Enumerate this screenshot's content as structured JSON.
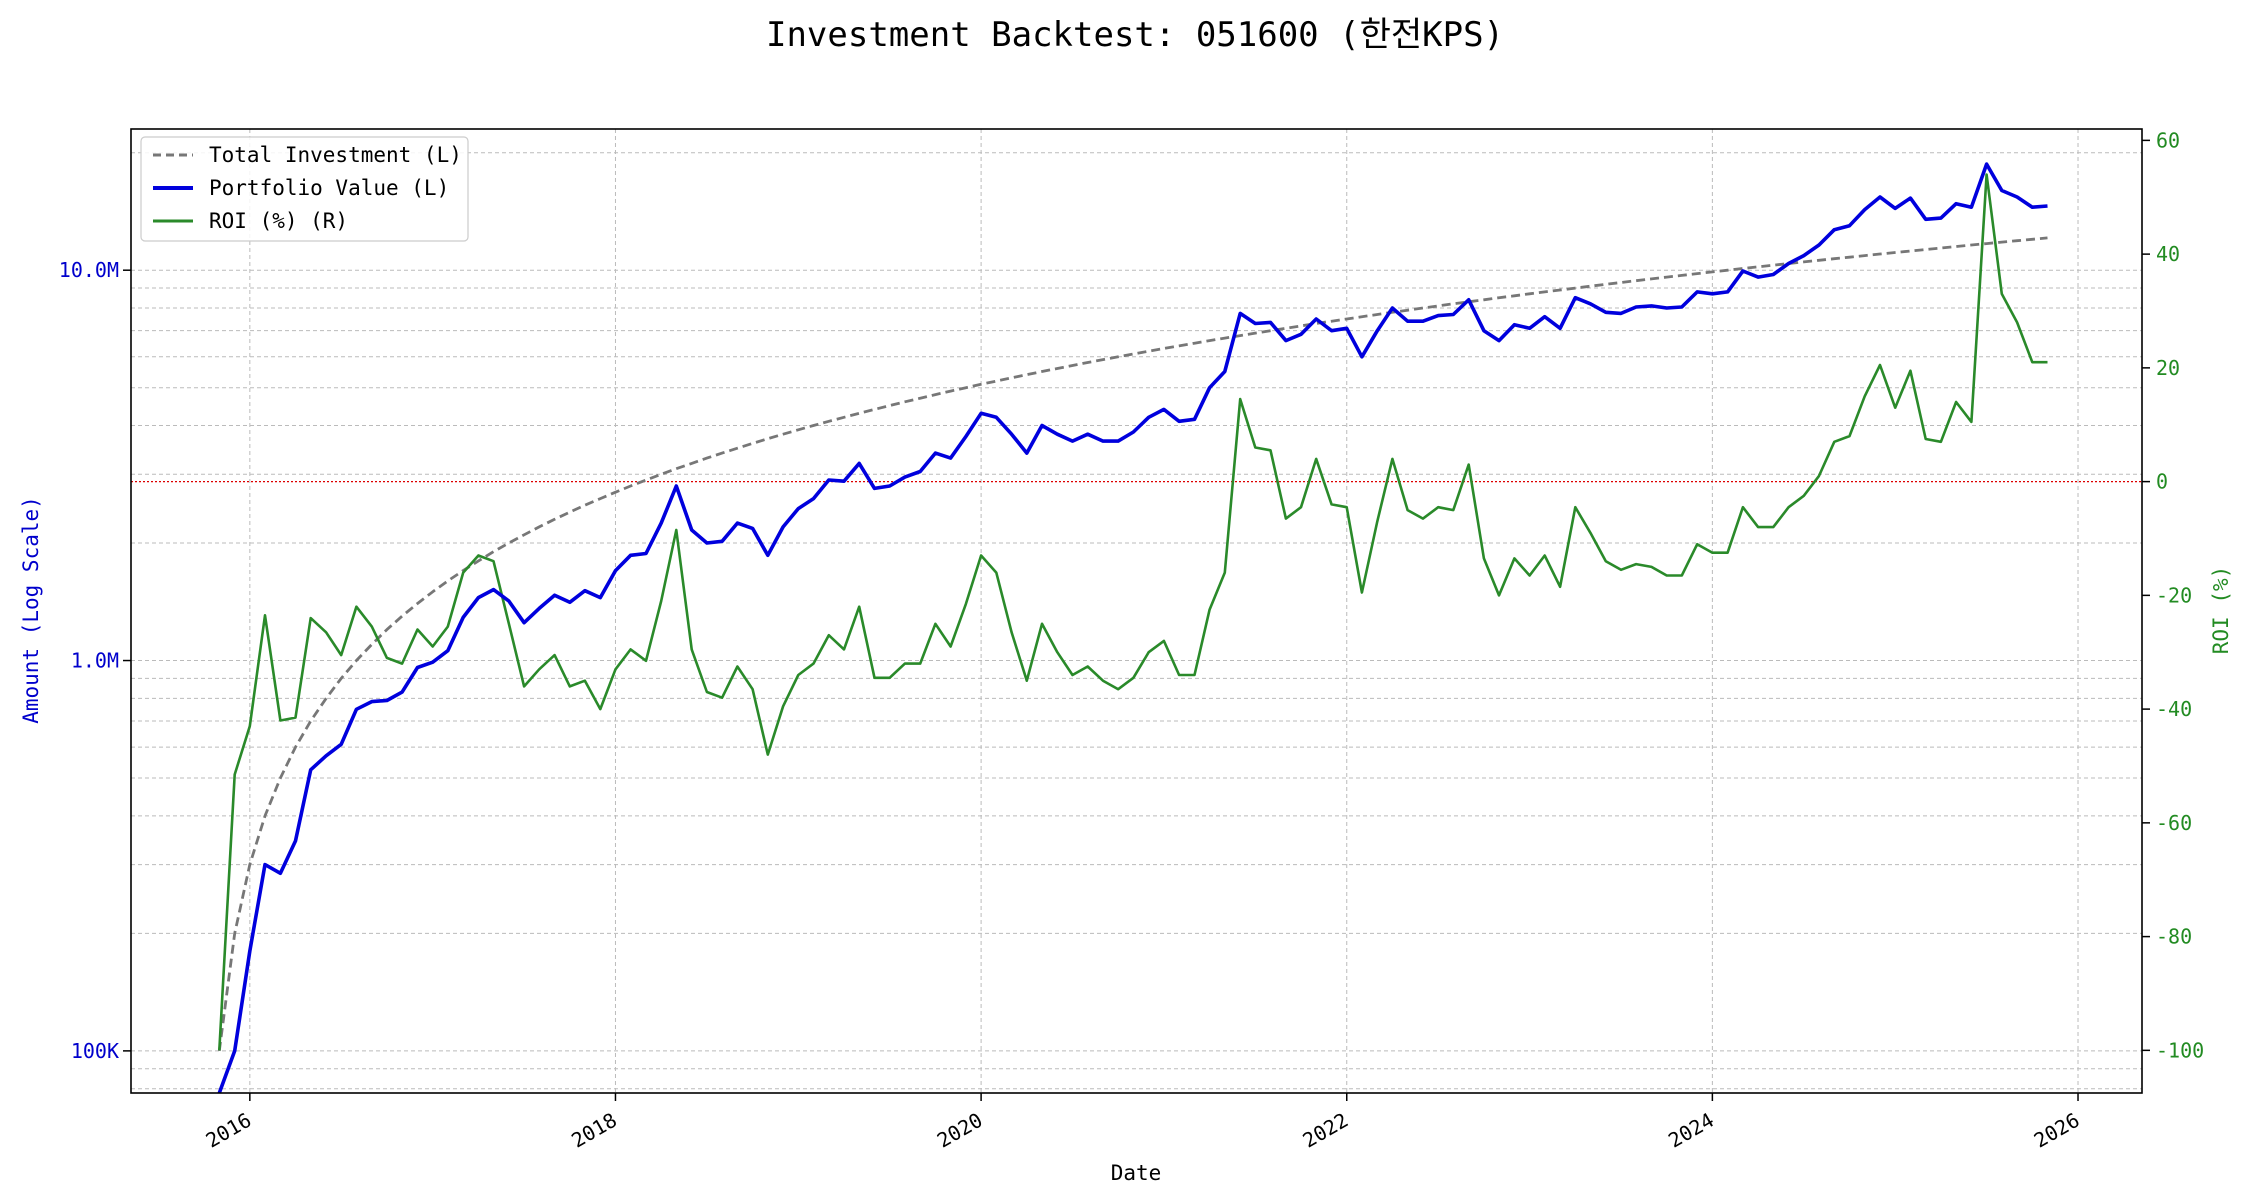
{
  "colors": {
    "investment": "#777777",
    "portfolio": "#0000dd",
    "roi": "#2a8a2a",
    "zero_line": "#dd0000",
    "grid": "#bbbbbb"
  },
  "chart_data": {
    "type": "line",
    "title": "Investment Backtest: 051600 (한전KPS)",
    "xlabel": "Date",
    "ylabel_left": "Amount (Log Scale)",
    "ylabel_right": "ROI (%)",
    "x_ticks": [
      "2016",
      "2018",
      "2020",
      "2022",
      "2024",
      "2026"
    ],
    "x_range": [
      2015.35,
      2026.35
    ],
    "y_left_scale": "log",
    "y_left_range": [
      78000,
      23000000
    ],
    "y_left_ticks": [
      {
        "value": 100000,
        "label": "100K"
      },
      {
        "value": 1000000,
        "label": "1.0M"
      },
      {
        "value": 10000000,
        "label": "10.0M"
      }
    ],
    "y_right_range": [
      -107.5,
      62
    ],
    "y_right_ticks": [
      -100,
      -80,
      -60,
      -40,
      -20,
      0,
      20,
      40,
      60
    ],
    "grid": true,
    "legend_position": "top-left",
    "legend": [
      "Total Investment (L)",
      "Portfolio Value (L)",
      "ROI (%) (R)"
    ],
    "x": [
      2015.833,
      2015.917,
      2016.0,
      2016.083,
      2016.167,
      2016.25,
      2016.333,
      2016.417,
      2016.5,
      2016.583,
      2016.667,
      2016.75,
      2016.833,
      2016.917,
      2017.0,
      2017.083,
      2017.167,
      2017.25,
      2017.333,
      2017.417,
      2017.5,
      2017.583,
      2017.667,
      2017.75,
      2017.833,
      2017.917,
      2018.0,
      2018.083,
      2018.167,
      2018.25,
      2018.333,
      2018.417,
      2018.5,
      2018.583,
      2018.667,
      2018.75,
      2018.833,
      2018.917,
      2019.0,
      2019.083,
      2019.167,
      2019.25,
      2019.333,
      2019.417,
      2019.5,
      2019.583,
      2019.667,
      2019.75,
      2019.833,
      2019.917,
      2020.0,
      2020.083,
      2020.167,
      2020.25,
      2020.333,
      2020.417,
      2020.5,
      2020.583,
      2020.667,
      2020.75,
      2020.833,
      2020.917,
      2021.0,
      2021.083,
      2021.167,
      2021.25,
      2021.333,
      2021.417,
      2021.5,
      2021.583,
      2021.667,
      2021.75,
      2021.833,
      2021.917,
      2022.0,
      2022.083,
      2022.167,
      2022.25,
      2022.333,
      2022.417,
      2022.5,
      2022.583,
      2022.667,
      2022.75,
      2022.833,
      2022.917,
      2023.0,
      2023.083,
      2023.167,
      2023.25,
      2023.333,
      2023.417,
      2023.5,
      2023.583,
      2023.667,
      2023.75,
      2023.833,
      2023.917,
      2024.0,
      2024.083,
      2024.167,
      2024.25,
      2024.333,
      2024.417,
      2024.5,
      2024.583,
      2024.667,
      2024.75,
      2024.833,
      2024.917,
      2025.0,
      2025.083,
      2025.167,
      2025.25,
      2025.333,
      2025.417,
      2025.5,
      2025.583,
      2025.667,
      2025.75,
      2025.833
    ],
    "series": [
      {
        "name": "Total Investment (L)",
        "axis": "left",
        "style": "dashed",
        "values": [
          100000,
          200000,
          300000,
          400000,
          500000,
          600000,
          700000,
          800000,
          900000,
          1000000,
          1100000,
          1200000,
          1300000,
          1400000,
          1500000,
          1600000,
          1700000,
          1800000,
          1900000,
          2000000,
          2100000,
          2200000,
          2300000,
          2400000,
          2500000,
          2600000,
          2700000,
          2800000,
          2900000,
          3000000,
          3100000,
          3200000,
          3300000,
          3400000,
          3500000,
          3600000,
          3700000,
          3800000,
          3900000,
          4000000,
          4100000,
          4200000,
          4300000,
          4400000,
          4500000,
          4600000,
          4700000,
          4800000,
          4900000,
          5000000,
          5100000,
          5200000,
          5300000,
          5400000,
          5500000,
          5600000,
          5700000,
          5800000,
          5900000,
          6000000,
          6100000,
          6200000,
          6300000,
          6400000,
          6500000,
          6600000,
          6700000,
          6800000,
          6900000,
          7000000,
          7100000,
          7200000,
          7300000,
          7400000,
          7500000,
          7600000,
          7700000,
          7800000,
          7900000,
          8000000,
          8100000,
          8200000,
          8300000,
          8400000,
          8500000,
          8600000,
          8700000,
          8800000,
          8900000,
          9000000,
          9100000,
          9200000,
          9300000,
          9400000,
          9500000,
          9600000,
          9700000,
          9800000,
          9900000,
          10000000,
          10100000,
          10200000,
          10300000,
          10400000,
          10500000,
          10600000,
          10700000,
          10800000,
          10900000,
          11000000,
          11100000,
          11200000,
          11300000,
          11400000,
          11500000,
          11600000,
          11700000,
          11800000,
          11900000,
          12000000,
          12100000
        ]
      },
      {
        "name": "Portfolio Value (L)",
        "axis": "left",
        "style": "solid",
        "values": [
          70000,
          100000,
          180000,
          300000,
          285000,
          345000,
          525000,
          570000,
          610000,
          750000,
          785000,
          790000,
          830000,
          960000,
          990000,
          1060000,
          1290000,
          1450000,
          1520000,
          1420000,
          1250000,
          1360000,
          1470000,
          1410000,
          1510000,
          1450000,
          1700000,
          1860000,
          1880000,
          2250000,
          2800000,
          2160000,
          2000000,
          2020000,
          2250000,
          2180000,
          1860000,
          2200000,
          2450000,
          2600000,
          2900000,
          2880000,
          3200000,
          2760000,
          2800000,
          2950000,
          3050000,
          3400000,
          3300000,
          3750000,
          4300000,
          4200000,
          3800000,
          3400000,
          4000000,
          3800000,
          3650000,
          3800000,
          3650000,
          3650000,
          3850000,
          4200000,
          4400000,
          4100000,
          4150000,
          5000000,
          5500000,
          7750000,
          7300000,
          7350000,
          6600000,
          6850000,
          7500000,
          7000000,
          7100000,
          6000000,
          7000000,
          8000000,
          7400000,
          7400000,
          7650000,
          7700000,
          8400000,
          7000000,
          6600000,
          7250000,
          7100000,
          7600000,
          7100000,
          8500000,
          8200000,
          7800000,
          7750000,
          8050000,
          8100000,
          8000000,
          8050000,
          8800000,
          8700000,
          8800000,
          9950000,
          9600000,
          9750000,
          10400000,
          10900000,
          11600000,
          12700000,
          13000000,
          14300000,
          15400000,
          14400000,
          15300000,
          13500000,
          13600000,
          14800000,
          14500000,
          18700000,
          16000000,
          15400000,
          14500000,
          14600000
        ]
      },
      {
        "name": "ROI (%) (R)",
        "axis": "right",
        "style": "solid",
        "values": [
          -100,
          -51.5,
          -43,
          -23.5,
          -42,
          -41.5,
          -24,
          -26.5,
          -30.5,
          -22,
          -25.5,
          -31,
          -32,
          -26,
          -29,
          -25.5,
          -16,
          -13,
          -14,
          -25,
          -36,
          -33,
          -30.5,
          -36,
          -35,
          -40,
          -33,
          -29.5,
          -31.5,
          -21,
          -8.5,
          -29.5,
          -37,
          -38,
          -32.5,
          -36.5,
          -48,
          -39.5,
          -34,
          -32,
          -27,
          -29.5,
          -22,
          -34.5,
          -34.5,
          -32,
          -32,
          -25,
          -29,
          -21.5,
          -13,
          -16,
          -26.5,
          -35,
          -25,
          -30,
          -34,
          -32.5,
          -35,
          -36.5,
          -34.5,
          -30,
          -28,
          -34,
          -34,
          -22.5,
          -16,
          14.5,
          6,
          5.5,
          -6.5,
          -4.5,
          4,
          -4,
          -4.5,
          -19.5,
          -7,
          4,
          -5,
          -6.5,
          -4.5,
          -5,
          3,
          -13.5,
          -20,
          -13.5,
          -16.5,
          -13,
          -18.5,
          -4.5,
          -9,
          -14,
          -15.5,
          -14.5,
          -15,
          -16.5,
          -16.5,
          -11,
          -12.5,
          -12.5,
          -4.5,
          -8,
          -8,
          -4.5,
          -2.5,
          1,
          7,
          8,
          15,
          20.5,
          13,
          19.5,
          7.5,
          7,
          14,
          10.5,
          54,
          33,
          28,
          21,
          21
        ]
      }
    ]
  }
}
